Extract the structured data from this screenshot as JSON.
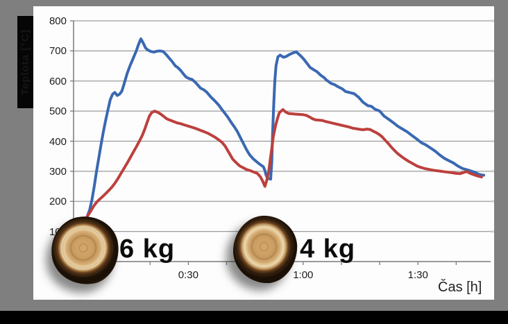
{
  "frame": {
    "surround_color": "#7f7f7f",
    "panel_color": "#fdfdfd",
    "bottom_strip_color": "#000000"
  },
  "chart_data": {
    "type": "line",
    "title": "",
    "xlabel": "Čas [h]",
    "ylabel": "Teplota [°C]",
    "x_unit": "minutes",
    "xlim": [
      0,
      109
    ],
    "ylim": [
      0,
      800
    ],
    "grid": true,
    "grid_color": "#9b9b9b",
    "axis_color": "#7a7a7a",
    "y_ticks": [
      800,
      700,
      600,
      500,
      400,
      300,
      200,
      100
    ],
    "x_tick_labels": [
      {
        "t": 30,
        "label": "0:30"
      },
      {
        "t": 60,
        "label": "1:00"
      },
      {
        "t": 90,
        "label": "1:30"
      }
    ],
    "x_minor_tick_every_min": 10,
    "legend": "none",
    "annotations": [
      {
        "label": "6 kg",
        "marker": "wood-log-photo",
        "position": "first burn cycle"
      },
      {
        "label": "4 kg",
        "marker": "wood-log-photo",
        "position": "second burn cycle"
      }
    ],
    "series": [
      {
        "name": "blue",
        "color": "#3a68b2",
        "points": [
          [
            3.6,
            150
          ],
          [
            4.2,
            172
          ],
          [
            4.8,
            205
          ],
          [
            5.4,
            250
          ],
          [
            6,
            300
          ],
          [
            6.6,
            345
          ],
          [
            7.2,
            390
          ],
          [
            7.8,
            432
          ],
          [
            8.4,
            470
          ],
          [
            9,
            505
          ],
          [
            9.6,
            538
          ],
          [
            10.2,
            556
          ],
          [
            10.8,
            562
          ],
          [
            11.4,
            552
          ],
          [
            12,
            556
          ],
          [
            12.6,
            566
          ],
          [
            13.2,
            590
          ],
          [
            14,
            625
          ],
          [
            14.8,
            652
          ],
          [
            15.6,
            676
          ],
          [
            16.4,
            700
          ],
          [
            17,
            722
          ],
          [
            17.6,
            740
          ],
          [
            18.2,
            726
          ],
          [
            18.8,
            710
          ],
          [
            19.4,
            703
          ],
          [
            20.2,
            698
          ],
          [
            21,
            696
          ],
          [
            21.8,
            699
          ],
          [
            22.6,
            700
          ],
          [
            23.4,
            698
          ],
          [
            24.2,
            688
          ],
          [
            25,
            676
          ],
          [
            25.8,
            664
          ],
          [
            26.6,
            650
          ],
          [
            27.2,
            645
          ],
          [
            28,
            635
          ],
          [
            28.8,
            622
          ],
          [
            29.4,
            613
          ],
          [
            30.2,
            608
          ],
          [
            31,
            605
          ],
          [
            31.8,
            596
          ],
          [
            32.6,
            585
          ],
          [
            33.2,
            576
          ],
          [
            34,
            571
          ],
          [
            34.8,
            563
          ],
          [
            35.4,
            554
          ],
          [
            36,
            545
          ],
          [
            37,
            533
          ],
          [
            38,
            519
          ],
          [
            38.8,
            505
          ],
          [
            39.6,
            492
          ],
          [
            40.4,
            478
          ],
          [
            41.2,
            462
          ],
          [
            42,
            448
          ],
          [
            42.8,
            432
          ],
          [
            43.6,
            412
          ],
          [
            44.4,
            392
          ],
          [
            45.2,
            372
          ],
          [
            46,
            355
          ],
          [
            47,
            341
          ],
          [
            48,
            330
          ],
          [
            48.8,
            322
          ],
          [
            49.6,
            315
          ],
          [
            50,
            303
          ],
          [
            50.3,
            288
          ],
          [
            50.7,
            277
          ],
          [
            51.5,
            274
          ],
          [
            51.8,
            330
          ],
          [
            52,
            420
          ],
          [
            52.3,
            520
          ],
          [
            52.6,
            600
          ],
          [
            52.9,
            650
          ],
          [
            53.4,
            680
          ],
          [
            54,
            686
          ],
          [
            54.8,
            679
          ],
          [
            55.5,
            681
          ],
          [
            56.4,
            688
          ],
          [
            57.3,
            693
          ],
          [
            58.2,
            697
          ],
          [
            59.3,
            684
          ],
          [
            60.2,
            672
          ],
          [
            61.1,
            657
          ],
          [
            61.8,
            645
          ],
          [
            62.7,
            638
          ],
          [
            63.6,
            631
          ],
          [
            64.6,
            619
          ],
          [
            65.5,
            611
          ],
          [
            66,
            604
          ],
          [
            67.3,
            592
          ],
          [
            68.2,
            588
          ],
          [
            69.1,
            581
          ],
          [
            70.2,
            574
          ],
          [
            71.1,
            565
          ],
          [
            72,
            562
          ],
          [
            73.3,
            558
          ],
          [
            74.5,
            546
          ],
          [
            75.6,
            530
          ],
          [
            76.9,
            518
          ],
          [
            77.8,
            516
          ],
          [
            78.7,
            507
          ],
          [
            80,
            500
          ],
          [
            81.1,
            484
          ],
          [
            82.3,
            473
          ],
          [
            83.6,
            461
          ],
          [
            84.7,
            450
          ],
          [
            86,
            440
          ],
          [
            87.2,
            431
          ],
          [
            88.3,
            420
          ],
          [
            89.6,
            408
          ],
          [
            90.9,
            395
          ],
          [
            92,
            388
          ],
          [
            93.2,
            378
          ],
          [
            94.5,
            367
          ],
          [
            95.6,
            355
          ],
          [
            96.9,
            343
          ],
          [
            98.1,
            335
          ],
          [
            99.2,
            328
          ],
          [
            100.5,
            317
          ],
          [
            101.7,
            309
          ],
          [
            102.8,
            305
          ],
          [
            104.1,
            300
          ],
          [
            105,
            296
          ],
          [
            105.9,
            290
          ],
          [
            106.6,
            288
          ],
          [
            107.2,
            287
          ]
        ]
      },
      {
        "name": "red",
        "color": "#bc403d",
        "points": [
          [
            3.6,
            150
          ],
          [
            4.4,
            166
          ],
          [
            5.2,
            183
          ],
          [
            6,
            197
          ],
          [
            6.8,
            207
          ],
          [
            7.6,
            216
          ],
          [
            8.4,
            226
          ],
          [
            9.2,
            236
          ],
          [
            10,
            247
          ],
          [
            10.8,
            260
          ],
          [
            11.6,
            276
          ],
          [
            12.4,
            293
          ],
          [
            13.2,
            310
          ],
          [
            14,
            327
          ],
          [
            14.8,
            345
          ],
          [
            15.6,
            363
          ],
          [
            16.4,
            381
          ],
          [
            17.2,
            400
          ],
          [
            18,
            420
          ],
          [
            18.6,
            440
          ],
          [
            19.2,
            462
          ],
          [
            19.8,
            483
          ],
          [
            20.4,
            495
          ],
          [
            21.2,
            500
          ],
          [
            22,
            496
          ],
          [
            22.8,
            490
          ],
          [
            23.6,
            482
          ],
          [
            24.4,
            474
          ],
          [
            25.2,
            470
          ],
          [
            26,
            466
          ],
          [
            27,
            461
          ],
          [
            28,
            458
          ],
          [
            29,
            454
          ],
          [
            30,
            450
          ],
          [
            31,
            446
          ],
          [
            32,
            442
          ],
          [
            33,
            437
          ],
          [
            34,
            432
          ],
          [
            35,
            427
          ],
          [
            36,
            420
          ],
          [
            37,
            413
          ],
          [
            38,
            404
          ],
          [
            38.8,
            396
          ],
          [
            39.6,
            384
          ],
          [
            40.6,
            362
          ],
          [
            41.6,
            340
          ],
          [
            42.4,
            330
          ],
          [
            43.4,
            318
          ],
          [
            44.3,
            312
          ],
          [
            45.2,
            306
          ],
          [
            46.2,
            302
          ],
          [
            47.2,
            297
          ],
          [
            48,
            293
          ],
          [
            48.8,
            282
          ],
          [
            49.4,
            268
          ],
          [
            50,
            250
          ],
          [
            50.5,
            270
          ],
          [
            51,
            300
          ],
          [
            51.4,
            338
          ],
          [
            51.8,
            375
          ],
          [
            52.2,
            415
          ],
          [
            52.8,
            452
          ],
          [
            53.3,
            476
          ],
          [
            53.8,
            495
          ],
          [
            54.7,
            505
          ],
          [
            55.4,
            497
          ],
          [
            56.2,
            492
          ],
          [
            57.1,
            491
          ],
          [
            58,
            490
          ],
          [
            59,
            489
          ],
          [
            60,
            488
          ],
          [
            60.8,
            486
          ],
          [
            61.6,
            481
          ],
          [
            62.4,
            475
          ],
          [
            63.2,
            471
          ],
          [
            64,
            470
          ],
          [
            65,
            469
          ],
          [
            66,
            465
          ],
          [
            67,
            462
          ],
          [
            68,
            459
          ],
          [
            69,
            456
          ],
          [
            70,
            453
          ],
          [
            71,
            450
          ],
          [
            72,
            447
          ],
          [
            73,
            443
          ],
          [
            74,
            441
          ],
          [
            75,
            439
          ],
          [
            75.8,
            438
          ],
          [
            76.6,
            440
          ],
          [
            77.5,
            439
          ],
          [
            78.2,
            434
          ],
          [
            79,
            429
          ],
          [
            79.8,
            423
          ],
          [
            80.6,
            415
          ],
          [
            81.4,
            404
          ],
          [
            82.2,
            393
          ],
          [
            83,
            381
          ],
          [
            83.8,
            370
          ],
          [
            84.7,
            359
          ],
          [
            85.7,
            349
          ],
          [
            86.7,
            340
          ],
          [
            87.7,
            332
          ],
          [
            88.7,
            325
          ],
          [
            89.7,
            318
          ],
          [
            90.7,
            313
          ],
          [
            91.8,
            309
          ],
          [
            93,
            306
          ],
          [
            94.2,
            303
          ],
          [
            95.4,
            301
          ],
          [
            96.6,
            299
          ],
          [
            97.8,
            297
          ],
          [
            99,
            295
          ],
          [
            100,
            293
          ],
          [
            101,
            292
          ],
          [
            101.9,
            296
          ],
          [
            102.8,
            299
          ],
          [
            103.5,
            294
          ],
          [
            104.3,
            290
          ],
          [
            105.2,
            286
          ],
          [
            106,
            283
          ],
          [
            106.6,
            281
          ]
        ]
      }
    ]
  }
}
